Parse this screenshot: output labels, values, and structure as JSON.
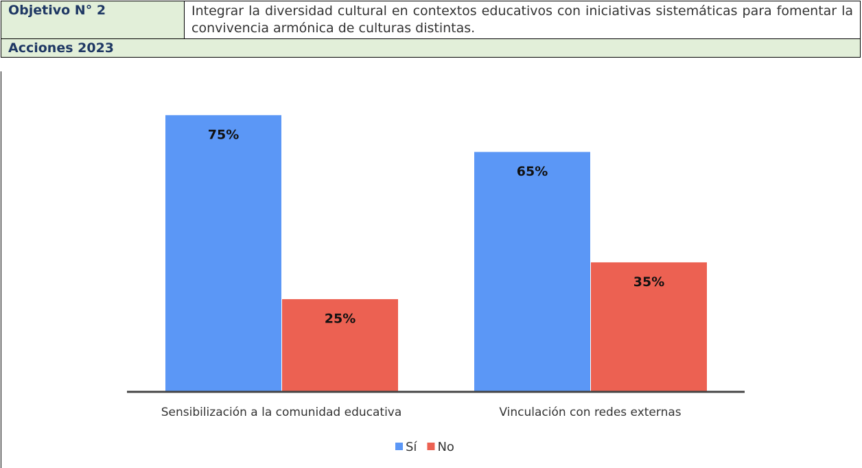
{
  "table": {
    "label": "Objetivo N° 2",
    "text": "Integrar la diversidad cultural en contextos educativos con iniciativas sistemáticas para fomentar la convivencia armónica de culturas distintas.",
    "section": "Acciones 2023"
  },
  "chart_data": {
    "type": "bar",
    "categories": [
      "Sensibilización a la comunidad educativa",
      "Vinculación con redes externas"
    ],
    "series": [
      {
        "name": "Sí",
        "color": "#5b97f6",
        "values": [
          75,
          65
        ],
        "value_labels": [
          "75%",
          "65%"
        ]
      },
      {
        "name": "No",
        "color": "#ec6152",
        "values": [
          25,
          35
        ],
        "value_labels": [
          "25%",
          "35%"
        ]
      }
    ],
    "ylim": [
      0,
      80
    ],
    "legend": "bottom"
  }
}
